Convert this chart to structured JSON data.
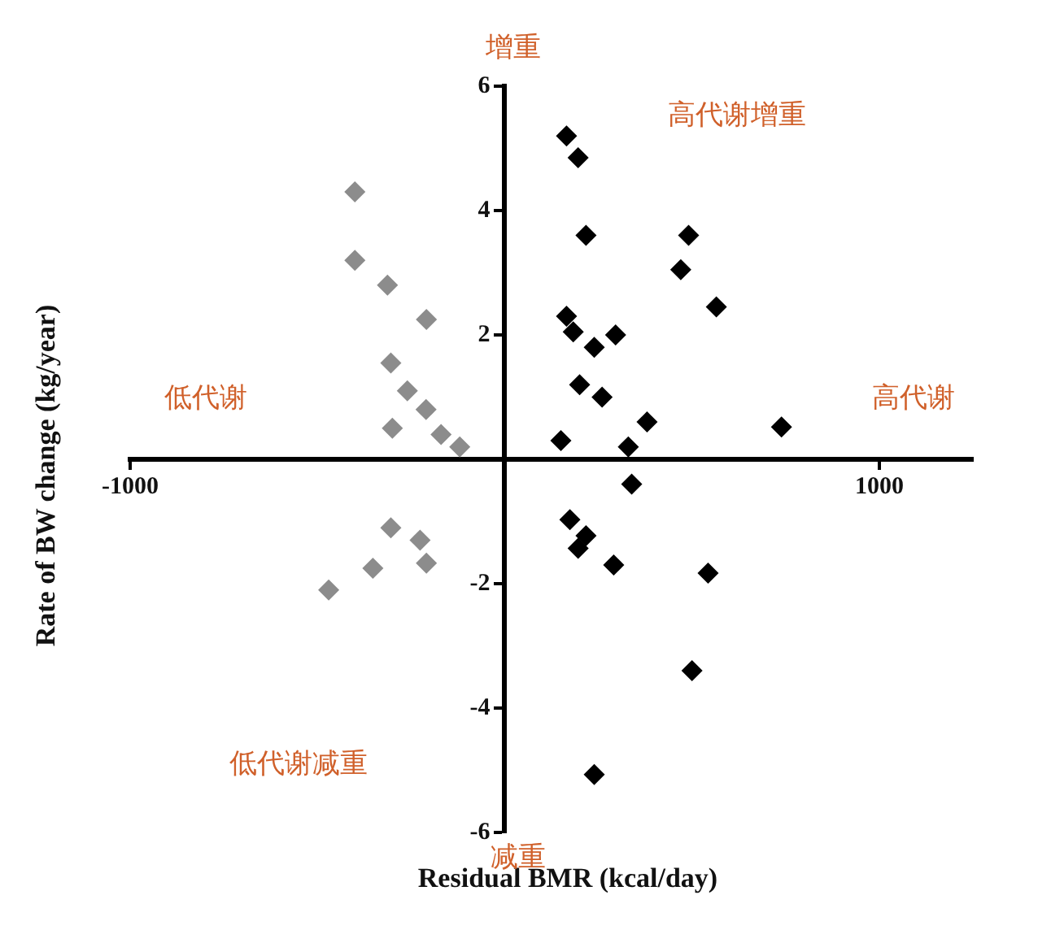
{
  "chart_data": {
    "type": "scatter",
    "xlabel": "Residual BMR (kcal/day)",
    "ylabel": "Rate of BW change (kg/year)",
    "xlim": [
      -1000,
      1250
    ],
    "xticks": [
      -1000,
      {
        "value": 0,
        "label": null
      },
      1000
    ],
    "ylim": [
      -6,
      6
    ],
    "yticks": [
      -6,
      -4,
      -2,
      {
        "value": 0,
        "label": null
      },
      2,
      4,
      6
    ],
    "grid": false,
    "legend": false,
    "marker": "diamond",
    "series": [
      {
        "color": "#8c8c8c",
        "x": [
          -400,
          -400,
          -313,
          -209,
          -304,
          -260,
          -210,
          -300,
          -170,
          -120,
          -304,
          -226,
          -209,
          -352,
          -470
        ],
        "values": [
          4.3,
          3.2,
          2.8,
          2.25,
          1.55,
          1.1,
          0.8,
          0.5,
          0.4,
          0.2,
          -1.1,
          -1.3,
          -1.67,
          -1.75,
          -2.1
        ]
      },
      {
        "color": "#000000",
        "x": [
          165,
          196,
          217,
          491,
          470,
          565,
          165,
          183,
          296,
          239,
          739,
          339,
          291,
          543,
          500,
          239,
          217,
          196,
          174,
          200,
          260,
          380,
          150,
          330
        ],
        "values": [
          5.2,
          4.85,
          3.6,
          3.6,
          3.05,
          2.45,
          2.3,
          2.05,
          2.0,
          1.8,
          0.52,
          -0.4,
          -1.7,
          -1.83,
          -3.4,
          -5.07,
          -1.23,
          -1.43,
          -0.97,
          1.2,
          1.0,
          0.6,
          0.3,
          0.2
        ]
      }
    ],
    "annotations": [
      "增重",
      "减重",
      "高代谢增重",
      "低代谢减重",
      "高代谢",
      "低代谢"
    ]
  }
}
